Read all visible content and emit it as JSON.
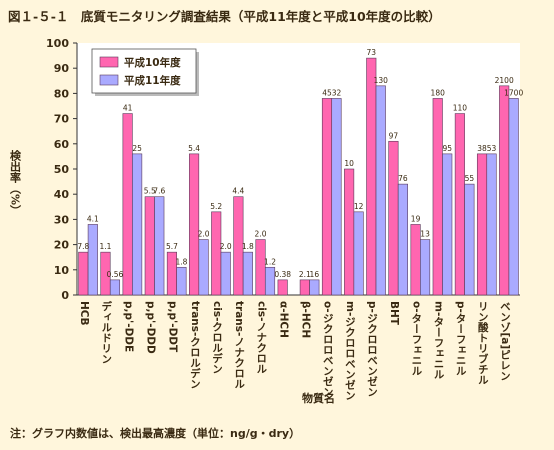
{
  "figure": {
    "title": "図１-５-１　底質モニタリング調査結果（平成11年度と平成10年度の比較）",
    "note": "注：グラフ内数値は、検出最高濃度（単位：ng/g・dry）"
  },
  "colors": {
    "background": "#fff6dc",
    "plot_background": "#ffffff",
    "series_h10": "#ff66b0",
    "series_h11": "#aaaaff",
    "bar_outline": "#5a3a5a",
    "text": "#3a2a12"
  },
  "chart_data": {
    "type": "bar",
    "xlabel": "物質名",
    "ylabel": "検出率（%）",
    "ylim": [
      0,
      100
    ],
    "yticks": [
      0,
      10,
      20,
      30,
      40,
      50,
      60,
      70,
      80,
      90,
      100
    ],
    "grid": false,
    "legend_position": "top-left",
    "categories": [
      "HCB",
      "ディルドリン",
      "p,p'-DDE",
      "p,p'-DDD",
      "p,p'-DDT",
      "trans-クロルデン",
      "cis-クロルデン",
      "trans-ノナクロル",
      "cis-ノナクロル",
      "α-HCH",
      "β-HCH",
      "o-ジクロロベンゼン",
      "m-ジクロロベンゼン",
      "p-ジクロロベンゼン",
      "BHT",
      "o-ターフェニル",
      "m-ターフェニル",
      "p-ターフェニル",
      "リン酸トリブチル",
      "ベンゾ[a]ピレン"
    ],
    "series": [
      {
        "name": "平成10年度",
        "values": [
          17,
          17,
          72,
          39,
          17,
          56,
          33,
          39,
          22,
          6,
          6,
          78,
          50,
          94,
          61,
          28,
          78,
          72,
          56,
          83
        ],
        "labels": [
          "7.8",
          "1.1",
          "41",
          "5.5",
          "5.7",
          "5.4",
          "5.2",
          "4.4",
          "2.0",
          "0.38",
          "2.1",
          "45",
          "10",
          "73",
          "97",
          "19",
          "180",
          "110",
          "38",
          "2100"
        ]
      },
      {
        "name": "平成11年度",
        "values": [
          28,
          6,
          56,
          39,
          11,
          22,
          17,
          17,
          11,
          0,
          6,
          78,
          33,
          83,
          44,
          22,
          56,
          44,
          56,
          78
        ],
        "labels": [
          "4.1",
          "0.56",
          "25",
          "7.6",
          "1.8",
          "2.0",
          "2.0",
          "1.8",
          "1.2",
          "",
          "16",
          "32",
          "12",
          "130",
          "76",
          "13",
          "95",
          "55",
          "53",
          "1700"
        ]
      }
    ]
  }
}
